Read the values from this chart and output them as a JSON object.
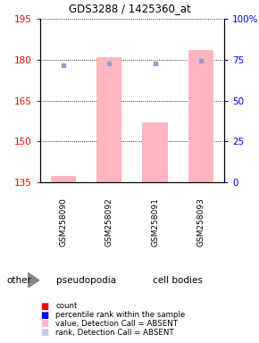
{
  "title": "GDS3288 / 1425360_at",
  "samples": [
    "GSM258090",
    "GSM258092",
    "GSM258091",
    "GSM258093"
  ],
  "groups": [
    "pseudopodia",
    "pseudopodia",
    "cell bodies",
    "cell bodies"
  ],
  "group_colors": {
    "pseudopodia": "#90EE90",
    "cell bodies": "#3ECC3E"
  },
  "ylim_left": [
    135,
    195
  ],
  "yticks_left": [
    135,
    150,
    165,
    180,
    195
  ],
  "yticks_right": [
    0,
    25,
    50,
    75,
    100
  ],
  "ytick_labels_right": [
    "0",
    "25",
    "50",
    "75",
    "100%"
  ],
  "bar_values": [
    137.5,
    181.0,
    157.0,
    183.5
  ],
  "bar_base": 135,
  "rank_values": [
    178.0,
    178.5,
    178.5,
    179.5
  ],
  "bar_color": "#FFB6C1",
  "rank_dot_color": "#9999CC",
  "legend_items": [
    {
      "color": "#FF0000",
      "label": "count"
    },
    {
      "color": "#0000FF",
      "label": "percentile rank within the sample"
    },
    {
      "color": "#FFB6C1",
      "label": "value, Detection Call = ABSENT"
    },
    {
      "color": "#C8C8E8",
      "label": "rank, Detection Call = ABSENT"
    }
  ]
}
